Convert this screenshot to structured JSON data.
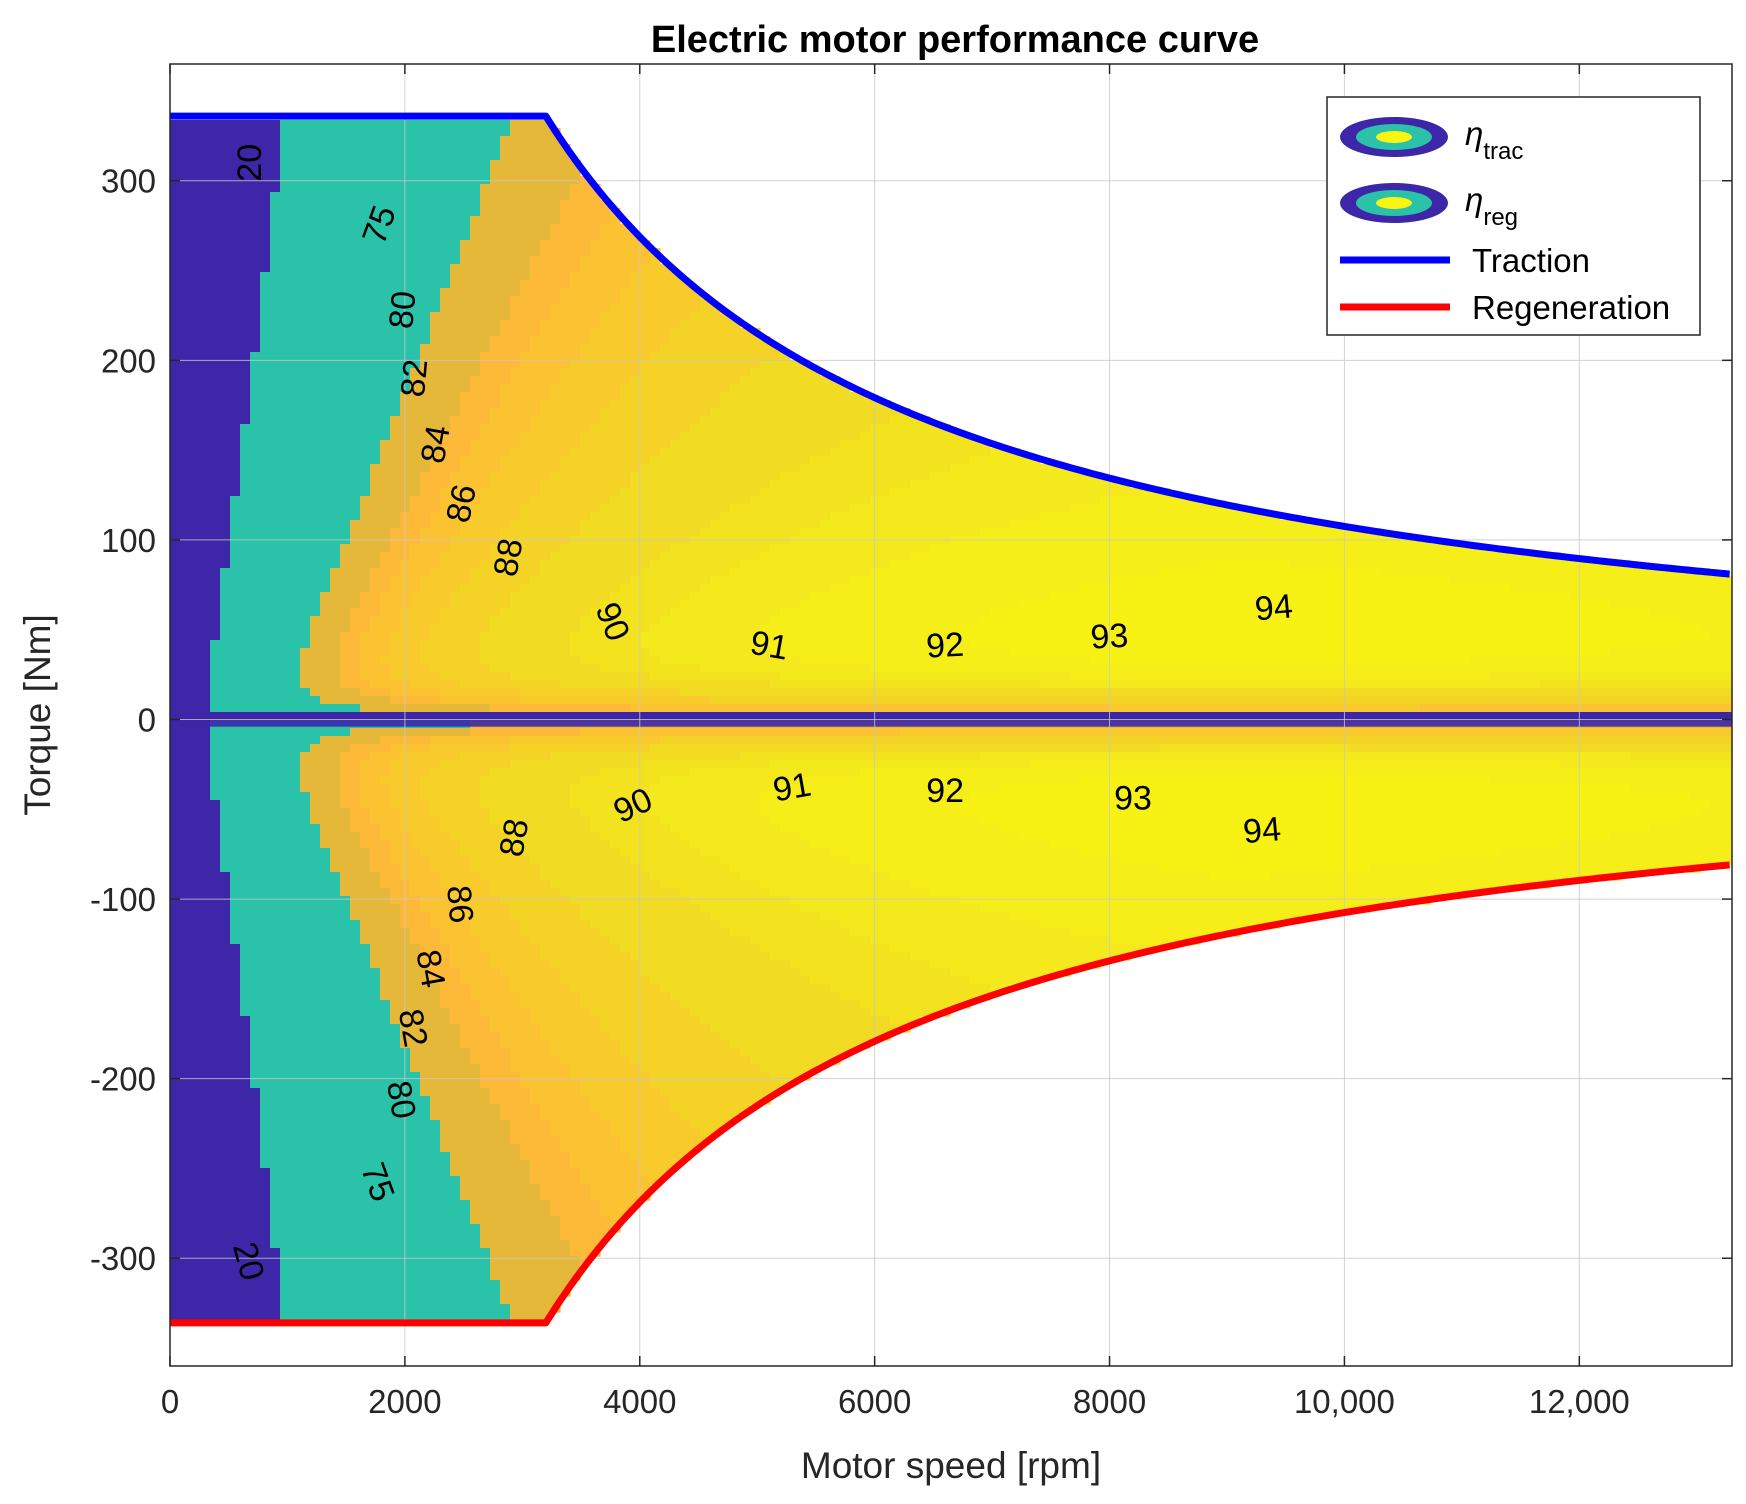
{
  "chart_data": {
    "type": "heatmap",
    "title": "Electric motor performance curve",
    "xlabel": "Motor speed [rpm]",
    "ylabel": "Torque [Nm]",
    "xlim": [
      0,
      13300
    ],
    "ylim": [
      -360,
      365
    ],
    "x_ticks": [
      0,
      2000,
      4000,
      6000,
      8000,
      10000,
      12000
    ],
    "x_tick_labels": [
      "0",
      "2000",
      "4000",
      "6000",
      "8000",
      "10,000",
      "12,000"
    ],
    "y_ticks": [
      300,
      200,
      100,
      0,
      -100,
      -200,
      -300
    ],
    "y_tick_labels": [
      "300",
      "200",
      "100",
      "0",
      "-100",
      "-200",
      "-300"
    ],
    "grid": true,
    "max_torque_nm": 336,
    "base_speed_rpm": 3200,
    "max_speed_rpm": 13300,
    "traction_envelope": {
      "name": "Traction",
      "color": "#0000ff",
      "points": [
        [
          0,
          336
        ],
        [
          3200,
          336
        ],
        [
          4000,
          269
        ],
        [
          5000,
          215
        ],
        [
          6000,
          179
        ],
        [
          7000,
          154
        ],
        [
          8000,
          134
        ],
        [
          9000,
          119
        ],
        [
          10000,
          108
        ],
        [
          11000,
          98
        ],
        [
          12000,
          90
        ],
        [
          13300,
          81
        ]
      ]
    },
    "regeneration_envelope": {
      "name": "Regeneration",
      "color": "#ff0000",
      "points": [
        [
          0,
          -336
        ],
        [
          3200,
          -336
        ],
        [
          4000,
          -269
        ],
        [
          5000,
          -215
        ],
        [
          6000,
          -179
        ],
        [
          7000,
          -154
        ],
        [
          8000,
          -134
        ],
        [
          9000,
          -119
        ],
        [
          10000,
          -108
        ],
        [
          11000,
          -98
        ],
        [
          12000,
          -90
        ],
        [
          13300,
          -81
        ]
      ]
    },
    "efficiency_levels": [
      20,
      75,
      80,
      82,
      84,
      86,
      88,
      90,
      91,
      92,
      93,
      94
    ],
    "efficiency_colors": {
      "below_20": "#3d26a8",
      "20_to_75": "#2ac2a8",
      "75_to_80": "#e6b83a",
      "80_to_82": "#fdba38",
      "82_to_84": "#fbc232",
      "84_to_86": "#f8ca2b",
      "86_to_88": "#f5d326",
      "88_to_90": "#f2dc23",
      "90_to_91": "#f3e31f",
      "91_to_92": "#f4e91c",
      "92_to_93": "#f6ee18",
      "93_to_94": "#f8f214",
      "above_94": "#f9f511"
    },
    "traction_contour_labels": [
      {
        "text": "20",
        "x": 700,
        "y": 310,
        "rotation": -90
      },
      {
        "text": "75",
        "x": 1800,
        "y": 275,
        "rotation": -70
      },
      {
        "text": "80",
        "x": 2000,
        "y": 228,
        "rotation": -85
      },
      {
        "text": "82",
        "x": 2100,
        "y": 190,
        "rotation": -85
      },
      {
        "text": "84",
        "x": 2280,
        "y": 153,
        "rotation": -80
      },
      {
        "text": "86",
        "x": 2500,
        "y": 120,
        "rotation": -78
      },
      {
        "text": "88",
        "x": 2900,
        "y": 90,
        "rotation": -80
      },
      {
        "text": "90",
        "x": 3750,
        "y": 54,
        "rotation": 68
      },
      {
        "text": "91",
        "x": 5100,
        "y": 40,
        "rotation": 10
      },
      {
        "text": "92",
        "x": 6600,
        "y": 40,
        "rotation": -3
      },
      {
        "text": "93",
        "x": 8000,
        "y": 45,
        "rotation": -3
      },
      {
        "text": "94",
        "x": 9400,
        "y": 61,
        "rotation": -5
      }
    ],
    "regeneration_contour_labels": [
      {
        "text": "20",
        "x": 650,
        "y": -302,
        "rotation": 75
      },
      {
        "text": "75",
        "x": 1750,
        "y": -258,
        "rotation": 70
      },
      {
        "text": "80",
        "x": 1950,
        "y": -212,
        "rotation": 80
      },
      {
        "text": "82",
        "x": 2050,
        "y": -172,
        "rotation": 80
      },
      {
        "text": "84",
        "x": 2200,
        "y": -139,
        "rotation": 80
      },
      {
        "text": "86",
        "x": 2450,
        "y": -103,
        "rotation": 85
      },
      {
        "text": "88",
        "x": 2950,
        "y": -66,
        "rotation": -80
      },
      {
        "text": "90",
        "x": 3950,
        "y": -49,
        "rotation": -25
      },
      {
        "text": "91",
        "x": 5300,
        "y": -39,
        "rotation": -10
      },
      {
        "text": "92",
        "x": 6600,
        "y": -41,
        "rotation": 0
      },
      {
        "text": "93",
        "x": 8200,
        "y": -45,
        "rotation": 0
      },
      {
        "text": "94",
        "x": 9300,
        "y": -63,
        "rotation": -5
      }
    ],
    "legend": {
      "position": "top-right",
      "entries": [
        {
          "symbol": "eta",
          "subscript": "trac",
          "type": "contour"
        },
        {
          "symbol": "eta",
          "subscript": "reg",
          "type": "contour"
        },
        {
          "label": "Traction",
          "type": "line",
          "color": "#0000ff"
        },
        {
          "label": "Regeneration",
          "type": "line",
          "color": "#ff0000"
        }
      ]
    }
  }
}
